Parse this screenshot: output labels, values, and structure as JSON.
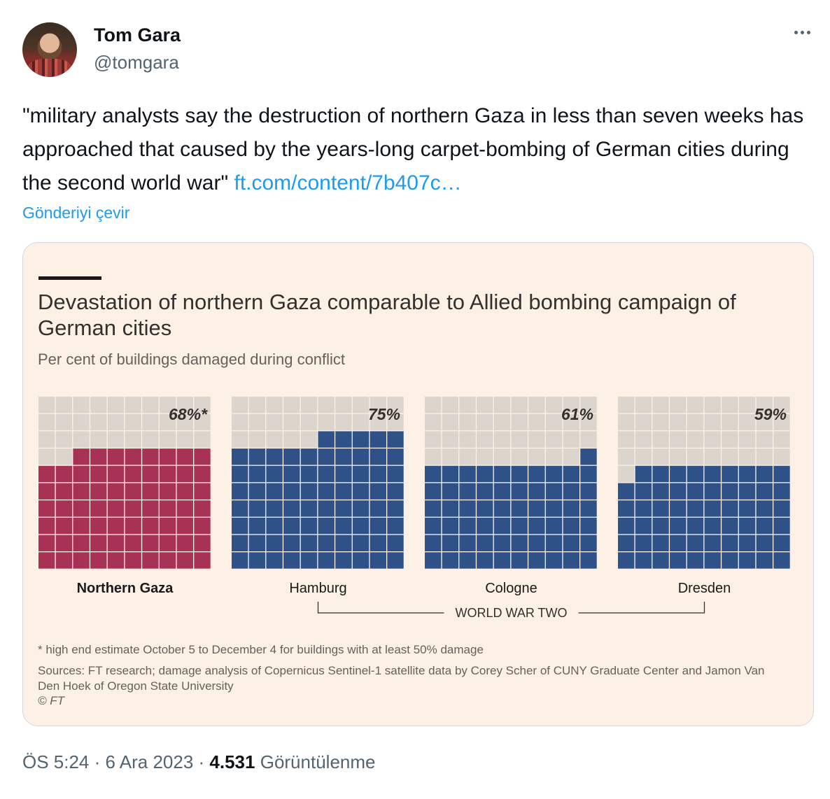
{
  "author": {
    "name": "Tom Gara",
    "handle": "@tomgara"
  },
  "tweet": {
    "text": "\"military analysts say the destruction of northern Gaza in less than seven weeks has approached that caused by the years-long carpet-bombing of German cities during the second world war\"",
    "link": "ft.com/content/7b407c…",
    "translate_label": "Gönderiyi çevir"
  },
  "card": {
    "title": "Devastation of northern Gaza comparable to Allied bombing campaign of German cities",
    "subtitle": "Per cent of buildings damaged during conflict",
    "footnote": "* high end estimate October 5 to December 4 for buildings with at least 50% damage",
    "sources": "Sources: FT research; damage analysis of Copernicus Sentinel-1 satellite data by Corey Scher of CUNY Graduate Center and Jamon Van Den Hoek of Oregon State University",
    "copyright": "© FT"
  },
  "chart_data": {
    "type": "waffle",
    "title": "Devastation of northern Gaza comparable to Allied bombing campaign of German cities",
    "subtitle": "Per cent of buildings damaged during conflict",
    "grid": {
      "rows": 10,
      "cols": 10
    },
    "series": [
      {
        "category": "Northern Gaza",
        "value": 68,
        "label": "68%*",
        "color": "#a83256",
        "bold": true
      },
      {
        "category": "Hamburg",
        "value": 75,
        "label": "75%",
        "color": "#2e5188",
        "bold": false
      },
      {
        "category": "Cologne",
        "value": 61,
        "label": "61%",
        "color": "#2e5188",
        "bold": false
      },
      {
        "category": "Dresden",
        "value": 59,
        "label": "59%",
        "color": "#2e5188",
        "bold": false
      }
    ],
    "group_label": "WORLD WAR TWO",
    "empty_color": "#dcd5cd"
  },
  "meta": {
    "time": "ÖS 5:24",
    "date": "6 Ara 2023",
    "views": "4.531",
    "views_label": "Görüntülenme"
  }
}
